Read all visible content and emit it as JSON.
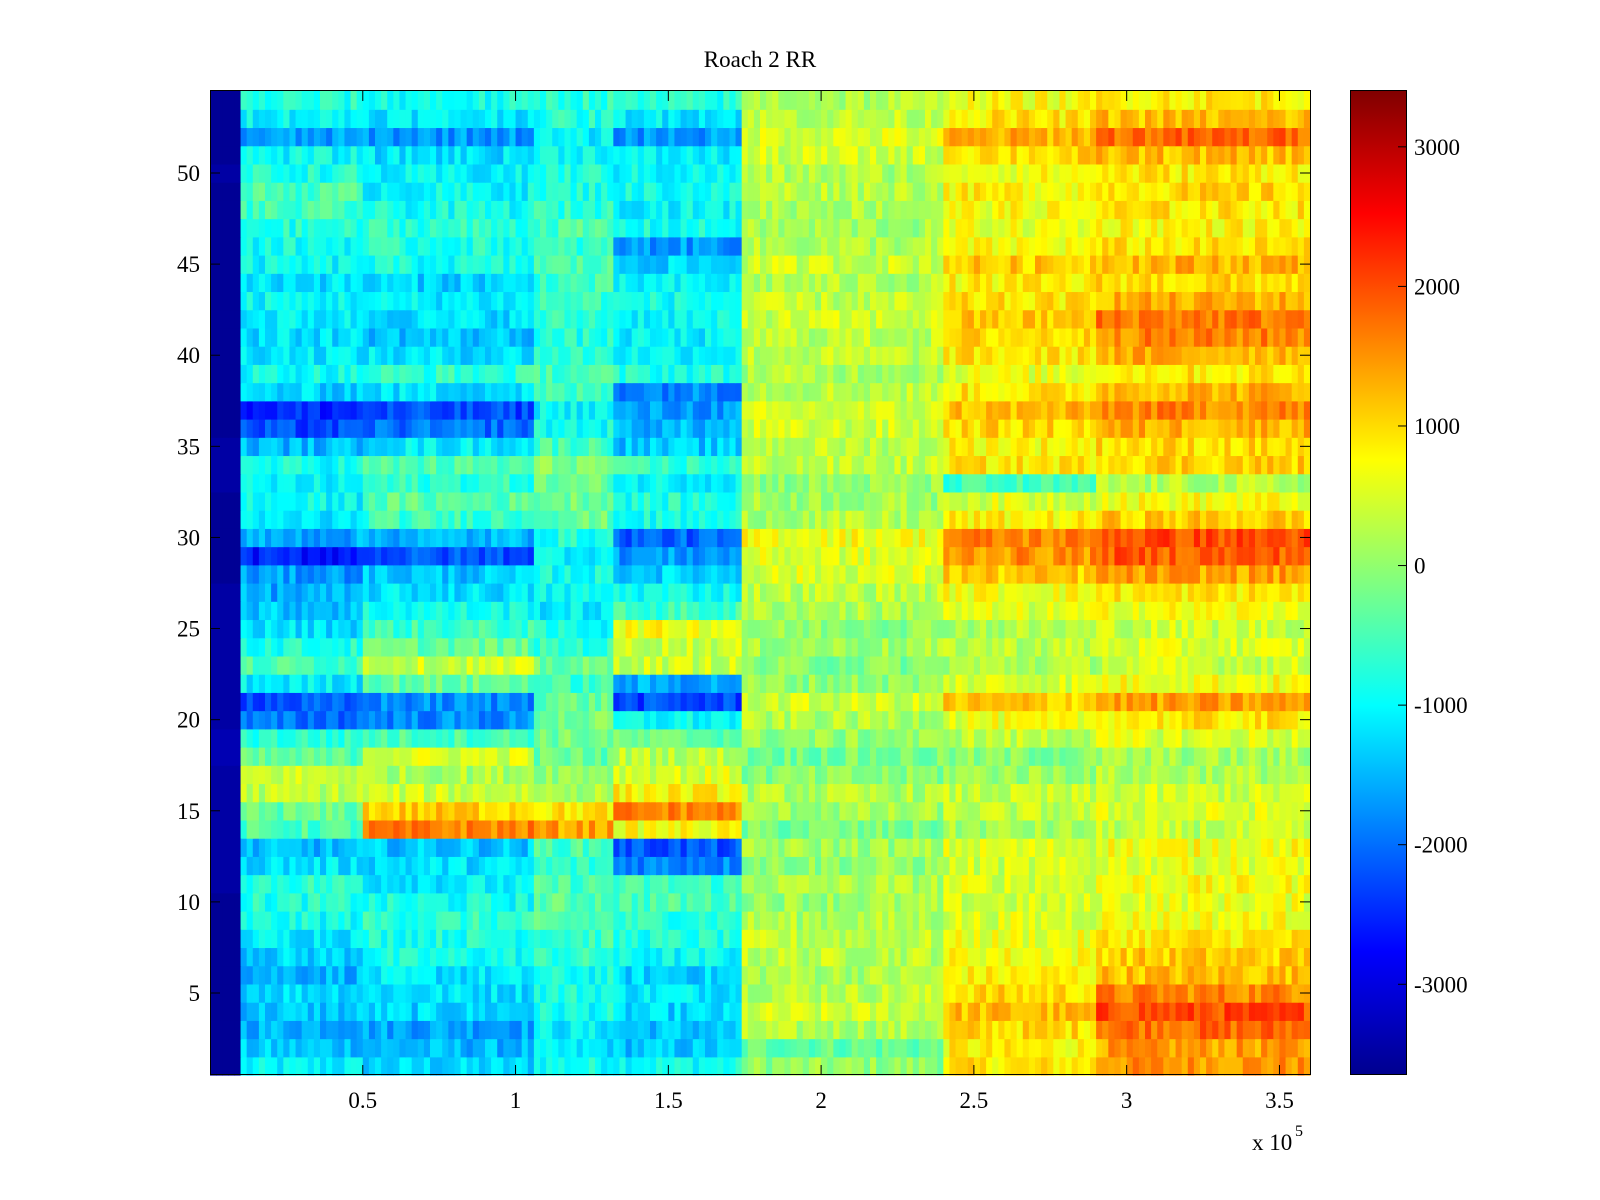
{
  "chart_data": {
    "type": "heatmap",
    "title": "Roach 2 RR",
    "xlabel": "",
    "ylabel": "",
    "x_multiplier_label": "x 10",
    "x_multiplier_exponent": "5",
    "xlim": [
      0,
      360000
    ],
    "ylim": [
      0.5,
      54.5
    ],
    "x_ticks": [
      {
        "value": 50000,
        "label": "0.5"
      },
      {
        "value": 100000,
        "label": "1"
      },
      {
        "value": 150000,
        "label": "1.5"
      },
      {
        "value": 200000,
        "label": "2"
      },
      {
        "value": 250000,
        "label": "2.5"
      },
      {
        "value": 300000,
        "label": "3"
      },
      {
        "value": 350000,
        "label": "3.5"
      }
    ],
    "y_ticks": [
      5,
      10,
      15,
      20,
      25,
      30,
      35,
      40,
      45,
      50
    ],
    "y_tick_labels": [
      "5",
      "10",
      "15",
      "20",
      "25",
      "30",
      "35",
      "40",
      "45",
      "50"
    ],
    "colorbar": {
      "colormap": "jet",
      "range": [
        -3650,
        3400
      ],
      "ticks": [
        -3000,
        -2000,
        -1000,
        0,
        1000,
        2000,
        3000
      ],
      "tick_labels": [
        "-3000",
        "-2000",
        "-1000",
        "0",
        "1000",
        "2000",
        "3000"
      ]
    },
    "grid": false,
    "legend": "colorbar-right",
    "rows": 54,
    "x_segments": [
      {
        "from": 0,
        "to": 10000
      },
      {
        "from": 10000,
        "to": 51000
      },
      {
        "from": 51000,
        "to": 106000
      },
      {
        "from": 106000,
        "to": 132000
      },
      {
        "from": 132000,
        "to": 175000
      },
      {
        "from": 175000,
        "to": 240000
      },
      {
        "from": 240000,
        "to": 290000
      },
      {
        "from": 290000,
        "to": 360000
      }
    ],
    "base_values": [
      [
        -3500,
        -1100,
        -1300,
        -900,
        -900,
        0,
        900,
        1500
      ],
      [
        -3500,
        -1400,
        -1500,
        -1200,
        -1400,
        -300,
        800,
        1400
      ],
      [
        -3500,
        -1500,
        -1600,
        -1100,
        -1400,
        200,
        1000,
        1800
      ],
      [
        -3500,
        -1400,
        -1300,
        -900,
        -1300,
        400,
        1200,
        2000
      ],
      [
        -3500,
        -1200,
        -1200,
        -800,
        -1100,
        300,
        1000,
        1600
      ],
      [
        -3500,
        -1500,
        -1200,
        -900,
        -1300,
        200,
        800,
        1200
      ],
      [
        -3500,
        -1300,
        -900,
        -700,
        -1000,
        300,
        700,
        1100
      ],
      [
        -3500,
        -1100,
        -800,
        -600,
        -800,
        300,
        600,
        900
      ],
      [
        -3500,
        -900,
        -700,
        -500,
        -700,
        200,
        500,
        700
      ],
      [
        -3500,
        -800,
        -900,
        -400,
        -500,
        100,
        400,
        600
      ],
      [
        -3400,
        -700,
        -1100,
        -500,
        -600,
        200,
        500,
        700
      ],
      [
        -3400,
        -1200,
        -1200,
        -700,
        -1800,
        0,
        400,
        600
      ],
      [
        -3400,
        -1500,
        -1400,
        -500,
        -2200,
        100,
        500,
        700
      ],
      [
        -3400,
        -500,
        1600,
        1400,
        700,
        -200,
        100,
        300
      ],
      [
        -3400,
        -300,
        1100,
        900,
        1600,
        100,
        300,
        500
      ],
      [
        -3400,
        300,
        400,
        200,
        800,
        200,
        300,
        400
      ],
      [
        -3400,
        400,
        200,
        100,
        500,
        -100,
        100,
        200
      ],
      [
        -3300,
        -400,
        500,
        -300,
        300,
        -200,
        -100,
        100
      ],
      [
        -3300,
        -700,
        -500,
        -200,
        -300,
        0,
        300,
        500
      ],
      [
        -3400,
        -2000,
        -1800,
        -200,
        -1000,
        200,
        600,
        900
      ],
      [
        -3400,
        -2200,
        -1800,
        -300,
        -2300,
        400,
        1100,
        1400
      ],
      [
        -3400,
        -1100,
        -300,
        -600,
        -1600,
        0,
        500,
        700
      ],
      [
        -3400,
        -500,
        400,
        -300,
        400,
        -100,
        200,
        400
      ],
      [
        -3400,
        -800,
        -300,
        -700,
        400,
        100,
        300,
        500
      ],
      [
        -3400,
        -1200,
        -600,
        -900,
        700,
        0,
        200,
        400
      ],
      [
        -3400,
        -1400,
        -900,
        -1100,
        -600,
        200,
        500,
        700
      ],
      [
        -3400,
        -1600,
        -1200,
        -1000,
        -900,
        300,
        700,
        900
      ],
      [
        -3500,
        -1700,
        -1400,
        -900,
        -1300,
        500,
        1100,
        1400
      ],
      [
        -3500,
        -2600,
        -2200,
        -1000,
        -1700,
        500,
        1500,
        1900
      ],
      [
        -3500,
        -1600,
        -1500,
        -800,
        -2100,
        700,
        1600,
        2000
      ],
      [
        -3500,
        -1200,
        -600,
        -300,
        -900,
        200,
        800,
        1100
      ],
      [
        -3500,
        -1000,
        -400,
        -200,
        -800,
        100,
        500,
        700
      ],
      [
        -3400,
        -1100,
        -700,
        -300,
        -1000,
        0,
        -600,
        200
      ],
      [
        -3400,
        -900,
        -500,
        -100,
        -700,
        300,
        900,
        1100
      ],
      [
        -3400,
        -1500,
        -1100,
        -500,
        -1400,
        300,
        800,
        1000
      ],
      [
        -3500,
        -2300,
        -2000,
        -900,
        -1500,
        400,
        1000,
        1300
      ],
      [
        -3500,
        -2500,
        -2300,
        -1000,
        -1700,
        400,
        1200,
        1600
      ],
      [
        -3500,
        -1300,
        -1200,
        -600,
        -1800,
        300,
        900,
        1300
      ],
      [
        -3500,
        -900,
        -700,
        -500,
        -800,
        200,
        600,
        900
      ],
      [
        -3500,
        -1100,
        -1200,
        -700,
        -1000,
        300,
        900,
        1300
      ],
      [
        -3500,
        -1200,
        -1400,
        -800,
        -1100,
        300,
        1000,
        1600
      ],
      [
        -3500,
        -1100,
        -1200,
        -700,
        -1000,
        400,
        1100,
        1700
      ],
      [
        -3500,
        -1000,
        -1100,
        -600,
        -900,
        300,
        900,
        1300
      ],
      [
        -3500,
        -1200,
        -1300,
        -600,
        -1100,
        200,
        800,
        1000
      ],
      [
        -3500,
        -1000,
        -900,
        -500,
        -1300,
        400,
        1100,
        1300
      ],
      [
        -3500,
        -900,
        -800,
        -700,
        -1700,
        200,
        700,
        900
      ],
      [
        -3500,
        -800,
        -700,
        -500,
        -900,
        100,
        600,
        800
      ],
      [
        -3500,
        -600,
        -900,
        -700,
        -1000,
        200,
        700,
        900
      ],
      [
        -3500,
        -500,
        -1000,
        -800,
        -900,
        300,
        800,
        1000
      ],
      [
        -3400,
        -800,
        -1100,
        -800,
        -1000,
        200,
        700,
        900
      ],
      [
        -3500,
        -1000,
        -1200,
        -900,
        -1100,
        400,
        1000,
        1200
      ],
      [
        -3500,
        -1700,
        -1700,
        -1100,
        -1700,
        500,
        1300,
        1800
      ],
      [
        -3500,
        -1000,
        -1100,
        -800,
        -1100,
        300,
        900,
        1200
      ],
      [
        -3500,
        -800,
        -900,
        -700,
        -800,
        200,
        700,
        900
      ]
    ]
  }
}
